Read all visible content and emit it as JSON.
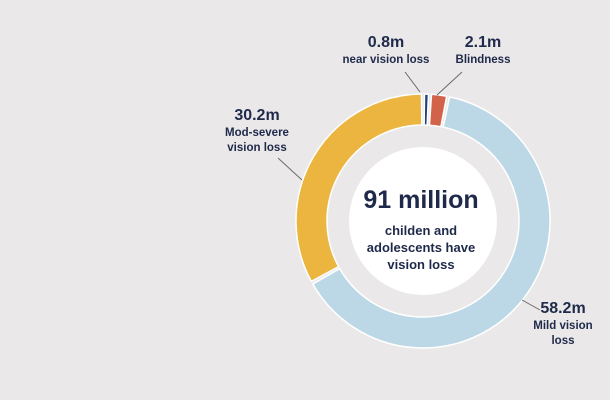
{
  "chart_data": {
    "type": "pie",
    "style": "donut",
    "center": {
      "headline": "91 million",
      "subtext": [
        "childen and",
        "adolescents have",
        "vision loss"
      ]
    },
    "slices": [
      {
        "value": 0.8,
        "value_label": "0.8m",
        "label_lines": [
          "near vision loss"
        ],
        "color": "#1f3f78"
      },
      {
        "value": 2.1,
        "value_label": "2.1m",
        "label_lines": [
          "Blindness"
        ],
        "color": "#d2634a"
      },
      {
        "value": 58.2,
        "value_label": "58.2m",
        "label_lines": [
          "Mild vision",
          "loss"
        ],
        "color": "#bcd8e6"
      },
      {
        "value": 30.2,
        "value_label": "30.2m",
        "label_lines": [
          "Mod-severe",
          "vision loss"
        ],
        "color": "#ecb53f"
      }
    ],
    "units": "m"
  }
}
